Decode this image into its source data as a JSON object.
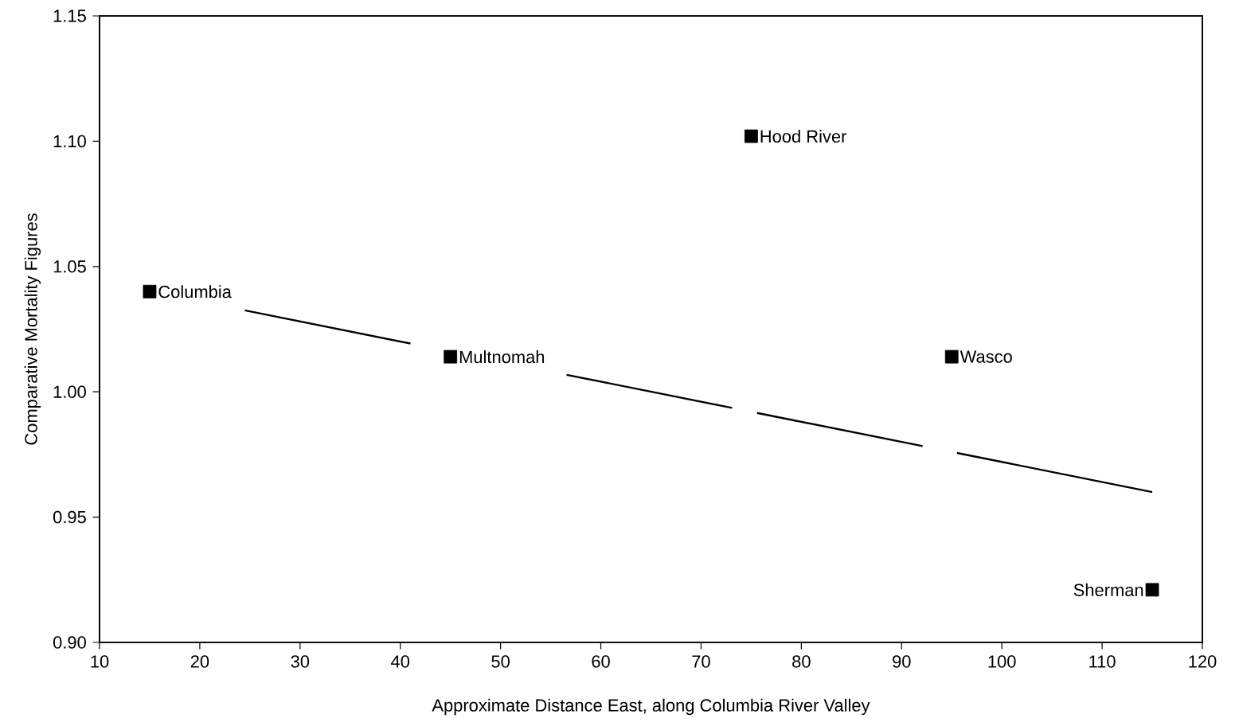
{
  "chart_data": {
    "type": "scatter",
    "xlabel": "Approximate Distance East, along Columbia River Valley",
    "ylabel": "Comparative Mortality Figures",
    "xlim": [
      10,
      120
    ],
    "xticks": [
      10,
      20,
      30,
      40,
      50,
      60,
      70,
      80,
      90,
      100,
      110,
      120
    ],
    "ylim": [
      0.9,
      1.15
    ],
    "yticks": [
      {
        "value": 0.9,
        "label": "0.90"
      },
      {
        "value": 0.95,
        "label": "0.95"
      },
      {
        "value": 1.0,
        "label": "1.00"
      },
      {
        "value": 1.05,
        "label": "1.05"
      },
      {
        "value": 1.1,
        "label": "1.10"
      },
      {
        "value": 1.15,
        "label": "1.15"
      }
    ],
    "grid": false,
    "marker": "square",
    "series": [
      {
        "color": "#000000",
        "x": [
          15,
          45,
          75,
          95,
          115
        ],
        "values": [
          1.04,
          1.014,
          1.102,
          1.014,
          0.921
        ]
      },
      {
        "type": "line",
        "color": "#000000",
        "line_style": "dashed",
        "marker": "none",
        "x": [
          24.5,
          115
        ],
        "values": [
          1.0325,
          0.96
        ]
      }
    ],
    "annotations": [
      {
        "text": "Columbia",
        "x": 15,
        "y": 1.04
      },
      {
        "text": "Multnomah",
        "x": 45,
        "y": 1.014
      },
      {
        "text": "Hood River",
        "x": 75,
        "y": 1.102
      },
      {
        "text": "Wasco",
        "x": 95,
        "y": 1.014
      },
      {
        "text": "Sherman",
        "x": 115,
        "y": 0.921
      }
    ]
  }
}
